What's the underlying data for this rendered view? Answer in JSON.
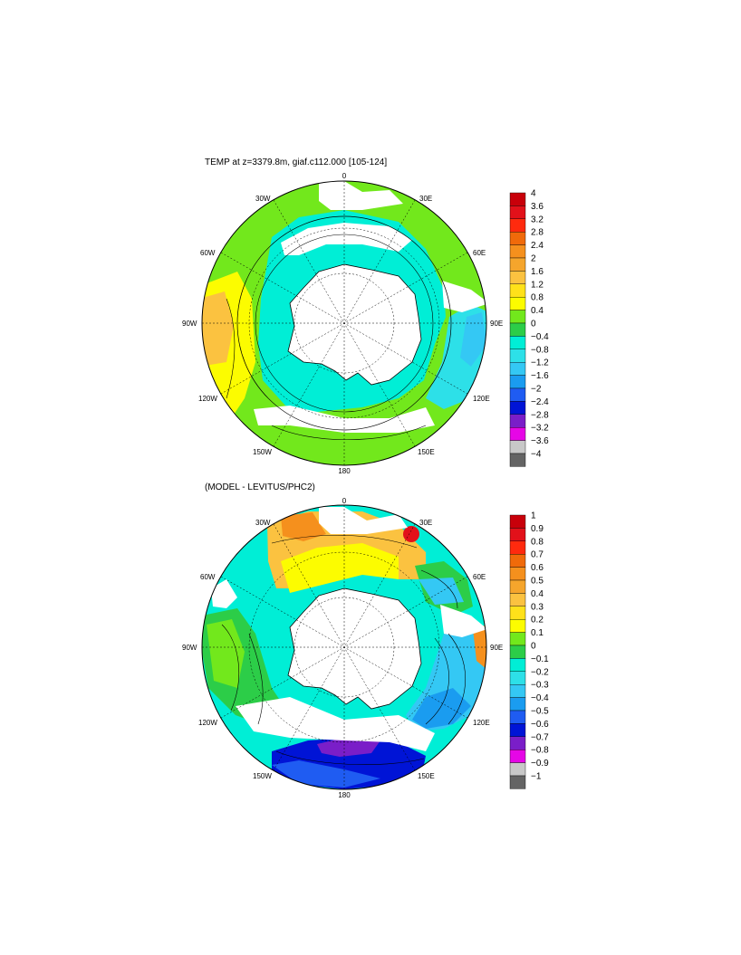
{
  "top_panel": {
    "title": "TEMP at z=3379.8m, giaf.c112.000 [105-124]",
    "longitude_labels": [
      "0",
      "30E",
      "60E",
      "90E",
      "120E",
      "150E",
      "180",
      "150W",
      "120W",
      "90W",
      "60W",
      "30W"
    ],
    "colorbar": {
      "ticks": [
        "4",
        "3.6",
        "3.2",
        "2.8",
        "2.4",
        "2",
        "1.6",
        "1.2",
        "0.8",
        "0.4",
        "0",
        "−0.4",
        "−0.8",
        "−1.2",
        "−1.6",
        "−2",
        "−2.4",
        "−2.8",
        "−3.2",
        "−3.6",
        "−4"
      ],
      "colors": [
        "#c8000a",
        "#e2111a",
        "#ff2a0e",
        "#f06a0a",
        "#f5901d",
        "#f5a52c",
        "#fbc240",
        "#ffe11a",
        "#fcfc00",
        "#72e81c",
        "#2ccd48",
        "#00eed6",
        "#2de0e8",
        "#34c8f4",
        "#1a9cf0",
        "#1f5cf2",
        "#0014d6",
        "#7a1ec8",
        "#e606e6",
        "#c8c8c8",
        "#646464"
      ]
    }
  },
  "bottom_panel": {
    "title": "(MODEL - LEVITUS/PHC2)",
    "longitude_labels": [
      "0",
      "30E",
      "60E",
      "90E",
      "120E",
      "150E",
      "180",
      "150W",
      "120W",
      "90W",
      "60W",
      "30W"
    ],
    "colorbar": {
      "ticks": [
        "1",
        "0.9",
        "0.8",
        "0.7",
        "0.6",
        "0.5",
        "0.4",
        "0.3",
        "0.2",
        "0.1",
        "0",
        "−0.1",
        "−0.2",
        "−0.3",
        "−0.4",
        "−0.5",
        "−0.6",
        "−0.7",
        "−0.8",
        "−0.9",
        "−1"
      ],
      "colors": [
        "#c8000a",
        "#e2111a",
        "#ff2a0e",
        "#f06a0a",
        "#f5901d",
        "#f5a52c",
        "#fbc240",
        "#ffe11a",
        "#fcfc00",
        "#72e81c",
        "#2ccd48",
        "#00eed6",
        "#2de0e8",
        "#34c8f4",
        "#1a9cf0",
        "#1f5cf2",
        "#0014d6",
        "#7a1ec8",
        "#e606e6",
        "#c8c8c8",
        "#646464"
      ]
    }
  }
}
